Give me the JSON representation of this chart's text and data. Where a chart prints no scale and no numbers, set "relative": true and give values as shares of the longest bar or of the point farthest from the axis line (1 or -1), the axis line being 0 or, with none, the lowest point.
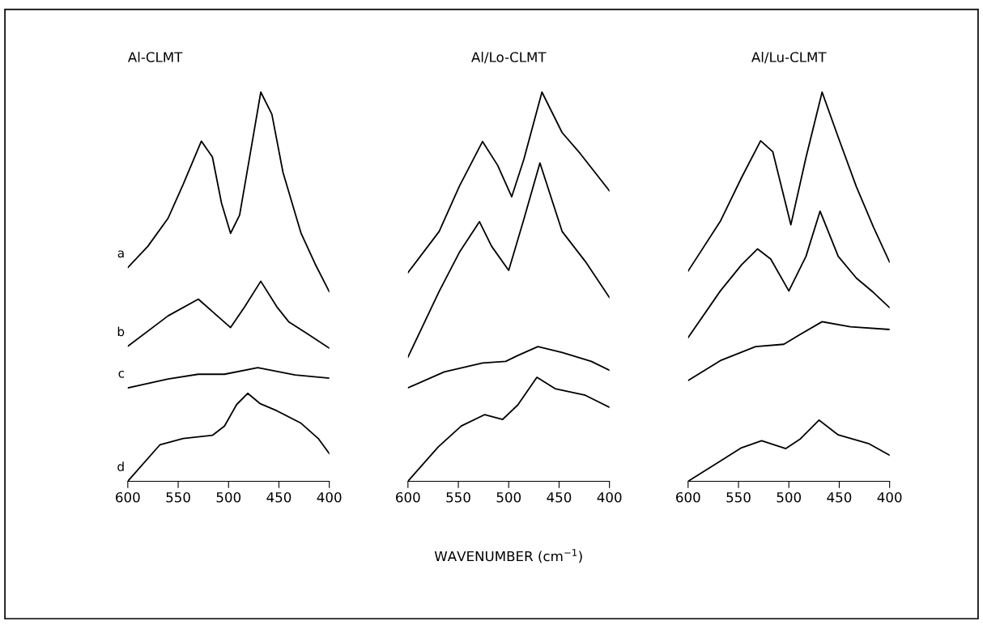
{
  "chart_data": [
    {
      "type": "line",
      "title": "Al-CLMT",
      "relative": true,
      "xlim": [
        600,
        400
      ],
      "xticks": [
        600,
        550,
        500,
        450,
        400
      ],
      "tick_labels": "x",
      "series": [
        {
          "name": "a",
          "color": "#000000",
          "x": [
            600,
            580,
            560,
            545,
            527,
            516,
            507,
            498,
            489,
            478,
            468,
            457,
            446,
            428,
            414,
            400
          ],
          "values": [
            0.549,
            0.604,
            0.676,
            0.763,
            0.874,
            0.833,
            0.715,
            0.637,
            0.684,
            0.849,
            1.0,
            0.943,
            0.794,
            0.637,
            0.558,
            0.487
          ]
        },
        {
          "name": "b",
          "color": "#000000",
          "x": [
            600,
            560,
            530,
            516,
            498,
            484,
            468,
            452,
            440,
            423,
            400
          ],
          "values": [
            0.347,
            0.425,
            0.468,
            0.436,
            0.395,
            0.448,
            0.514,
            0.448,
            0.409,
            0.381,
            0.342
          ]
        },
        {
          "name": "c",
          "color": "#000000",
          "x": [
            600,
            560,
            530,
            504,
            471,
            434,
            400
          ],
          "values": [
            0.24,
            0.263,
            0.275,
            0.275,
            0.292,
            0.273,
            0.265
          ]
        },
        {
          "name": "d",
          "color": "#000000",
          "x": [
            600,
            568,
            545,
            516,
            504,
            492,
            481,
            469,
            452,
            428,
            411,
            400
          ],
          "values": [
            0.0,
            0.094,
            0.11,
            0.118,
            0.142,
            0.197,
            0.226,
            0.2,
            0.181,
            0.149,
            0.11,
            0.071
          ]
        }
      ]
    },
    {
      "type": "line",
      "title": "Al/Lo-CLMT",
      "xlabel": "WAVENUMBER (cm$^{−1}$)",
      "relative": true,
      "xlim": [
        600,
        400
      ],
      "xticks": [
        600,
        550,
        500,
        450,
        400
      ],
      "tick_labels": "x",
      "series": [
        {
          "color": "#000000",
          "x": [
            600,
            569,
            549,
            526,
            511,
            497,
            485,
            467,
            447,
            429,
            400
          ],
          "values": [
            0.536,
            0.642,
            0.758,
            0.873,
            0.812,
            0.731,
            0.827,
            1.0,
            0.896,
            0.842,
            0.746
          ]
        },
        {
          "color": "#000000",
          "x": [
            600,
            569,
            549,
            529,
            517,
            500,
            485,
            469,
            447,
            424,
            400
          ],
          "values": [
            0.319,
            0.488,
            0.588,
            0.667,
            0.604,
            0.542,
            0.673,
            0.818,
            0.642,
            0.565,
            0.472
          ]
        },
        {
          "color": "#000000",
          "x": [
            600,
            564,
            526,
            503,
            491,
            471,
            447,
            418,
            400
          ],
          "values": [
            0.24,
            0.281,
            0.304,
            0.308,
            0.323,
            0.346,
            0.331,
            0.308,
            0.285
          ]
        },
        {
          "color": "#000000",
          "x": [
            600,
            570,
            547,
            524,
            506,
            491,
            472,
            454,
            424,
            400
          ],
          "values": [
            0.0,
            0.088,
            0.142,
            0.171,
            0.159,
            0.196,
            0.267,
            0.238,
            0.221,
            0.19
          ]
        }
      ]
    },
    {
      "type": "line",
      "title": "Al/Lu-CLMT",
      "relative": true,
      "xlim": [
        600,
        400
      ],
      "xticks": [
        600,
        550,
        500,
        450,
        400
      ],
      "tick_labels": "x",
      "series": [
        {
          "color": "#000000",
          "x": [
            600,
            568,
            547,
            528,
            516,
            498,
            483,
            467,
            451,
            433,
            416,
            400
          ],
          "values": [
            0.54,
            0.668,
            0.78,
            0.875,
            0.847,
            0.659,
            0.832,
            1.0,
            0.884,
            0.757,
            0.653,
            0.563
          ]
        },
        {
          "color": "#000000",
          "x": [
            600,
            568,
            547,
            531,
            518,
            500,
            483,
            469,
            451,
            433,
            416,
            400
          ],
          "values": [
            0.369,
            0.489,
            0.556,
            0.597,
            0.571,
            0.489,
            0.578,
            0.694,
            0.578,
            0.522,
            0.485,
            0.446
          ]
        },
        {
          "color": "#000000",
          "x": [
            600,
            568,
            533,
            505,
            489,
            467,
            439,
            400
          ],
          "values": [
            0.259,
            0.31,
            0.346,
            0.352,
            0.377,
            0.41,
            0.397,
            0.39
          ]
        },
        {
          "color": "#000000",
          "x": [
            600,
            568,
            547,
            527,
            503,
            489,
            470,
            451,
            421,
            400
          ],
          "values": [
            0.0,
            0.052,
            0.086,
            0.104,
            0.084,
            0.108,
            0.157,
            0.119,
            0.097,
            0.067
          ]
        }
      ]
    }
  ]
}
